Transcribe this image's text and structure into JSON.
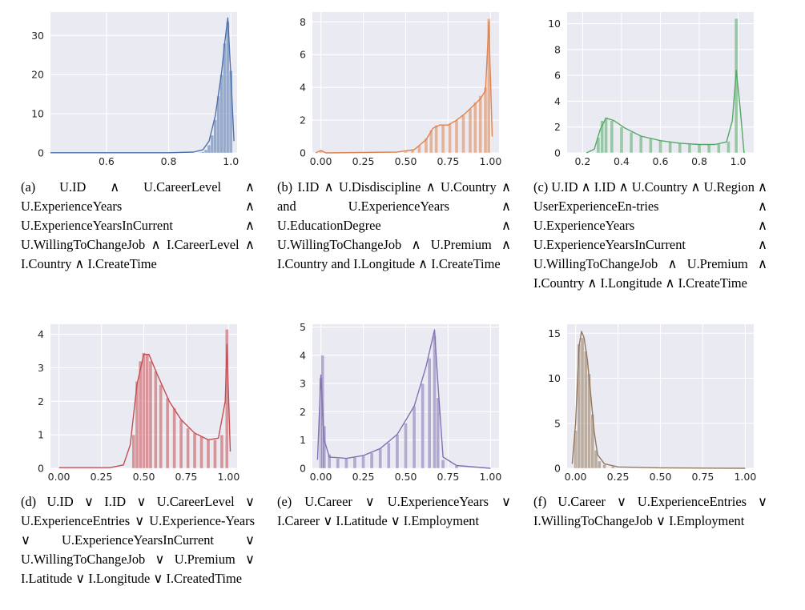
{
  "chart_data": [
    {
      "type": "histogram",
      "panel_id": "a",
      "color": "#4c72b0",
      "xlim": [
        0.42,
        1.02
      ],
      "ylim": [
        0,
        36
      ],
      "xticks": [
        0.6,
        0.8,
        1.0
      ],
      "xtick_labels": [
        "0.6",
        "0.8",
        "1.0"
      ],
      "yticks": [
        0,
        10,
        20,
        30
      ],
      "ytick_labels": [
        "0",
        "10",
        "20",
        "30"
      ],
      "bins": [
        [
          0.9,
          0.1
        ],
        [
          0.91,
          0.3
        ],
        [
          0.92,
          0.8
        ],
        [
          0.93,
          2.0
        ],
        [
          0.94,
          4.5
        ],
        [
          0.95,
          8.5
        ],
        [
          0.96,
          14.5
        ],
        [
          0.97,
          20.0
        ],
        [
          0.98,
          28.0
        ],
        [
          0.99,
          33.5
        ],
        [
          1.0,
          21.0
        ]
      ],
      "kde": [
        [
          0.42,
          0.05
        ],
        [
          0.8,
          0.05
        ],
        [
          0.88,
          0.2
        ],
        [
          0.91,
          0.8
        ],
        [
          0.93,
          3.0
        ],
        [
          0.95,
          9.5
        ],
        [
          0.97,
          20.5
        ],
        [
          0.98,
          28.0
        ],
        [
          0.99,
          34.5
        ],
        [
          1.0,
          20.0
        ],
        [
          1.01,
          3.0
        ]
      ],
      "caption_tag": "(a)",
      "caption": "U.ID ∧ U.CareerLevel ∧ U.ExperienceYears ∧ U.ExperienceYearsInCurrent ∧ U.WillingToChangeJob ∧ I.CareerLevel ∧ I.Country ∧ I.CreateTime"
    },
    {
      "type": "histogram",
      "panel_id": "b",
      "color": "#dd8452",
      "xlim": [
        -0.05,
        1.05
      ],
      "ylim": [
        0,
        8.6
      ],
      "xticks": [
        0.0,
        0.25,
        0.5,
        0.75,
        1.0
      ],
      "xtick_labels": [
        "0.00",
        "0.25",
        "0.50",
        "0.75",
        "1.00"
      ],
      "yticks": [
        0,
        2,
        4,
        6,
        8
      ],
      "ytick_labels": [
        "0",
        "2",
        "4",
        "6",
        "8"
      ],
      "bins": [
        [
          0.0,
          0.15
        ],
        [
          0.02,
          0.05
        ],
        [
          0.5,
          0.1
        ],
        [
          0.54,
          0.2
        ],
        [
          0.58,
          0.45
        ],
        [
          0.62,
          0.9
        ],
        [
          0.65,
          1.4
        ],
        [
          0.68,
          1.7
        ],
        [
          0.72,
          1.7
        ],
        [
          0.76,
          1.8
        ],
        [
          0.8,
          2.0
        ],
        [
          0.84,
          2.3
        ],
        [
          0.88,
          2.7
        ],
        [
          0.91,
          3.1
        ],
        [
          0.94,
          3.5
        ],
        [
          0.97,
          4.0
        ],
        [
          0.99,
          8.2
        ]
      ],
      "kde": [
        [
          -0.03,
          0.0
        ],
        [
          0.0,
          0.15
        ],
        [
          0.03,
          0.0
        ],
        [
          0.45,
          0.05
        ],
        [
          0.55,
          0.2
        ],
        [
          0.62,
          0.8
        ],
        [
          0.66,
          1.5
        ],
        [
          0.7,
          1.7
        ],
        [
          0.75,
          1.7
        ],
        [
          0.8,
          2.0
        ],
        [
          0.85,
          2.4
        ],
        [
          0.9,
          2.9
        ],
        [
          0.94,
          3.3
        ],
        [
          0.97,
          3.8
        ],
        [
          0.99,
          8.0
        ],
        [
          1.01,
          1.0
        ]
      ],
      "caption_tag": "(b)",
      "caption": "I.ID ∧ U.Disdiscipline ∧ U.Country ∧ and U.ExperienceYears ∧ U.EducationDegree ∧ U.WillingToChangeJob ∧ U.Premium ∧ I.Country and I.Longitude ∧ I.CreateTime"
    },
    {
      "type": "histogram",
      "panel_id": "c",
      "color": "#55a868",
      "xlim": [
        0.12,
        1.08
      ],
      "ylim": [
        0,
        10.9
      ],
      "xticks": [
        0.2,
        0.4,
        0.6,
        0.8,
        1.0
      ],
      "xtick_labels": [
        "0.2",
        "0.4",
        "0.6",
        "0.8",
        "1.0"
      ],
      "yticks": [
        0,
        2,
        4,
        6,
        8,
        10
      ],
      "ytick_labels": [
        "0",
        "2",
        "4",
        "6",
        "8",
        "10"
      ],
      "bins": [
        [
          0.28,
          1.2
        ],
        [
          0.3,
          2.5
        ],
        [
          0.32,
          2.7
        ],
        [
          0.35,
          2.5
        ],
        [
          0.4,
          2.0
        ],
        [
          0.45,
          1.6
        ],
        [
          0.5,
          1.3
        ],
        [
          0.55,
          1.1
        ],
        [
          0.6,
          0.95
        ],
        [
          0.65,
          0.85
        ],
        [
          0.7,
          0.75
        ],
        [
          0.75,
          0.7
        ],
        [
          0.8,
          0.65
        ],
        [
          0.85,
          0.65
        ],
        [
          0.9,
          0.7
        ],
        [
          0.95,
          0.9
        ],
        [
          0.99,
          10.4
        ]
      ],
      "kde": [
        [
          0.22,
          0.0
        ],
        [
          0.26,
          0.3
        ],
        [
          0.29,
          1.8
        ],
        [
          0.32,
          2.7
        ],
        [
          0.36,
          2.5
        ],
        [
          0.42,
          1.9
        ],
        [
          0.5,
          1.3
        ],
        [
          0.6,
          0.95
        ],
        [
          0.7,
          0.75
        ],
        [
          0.8,
          0.65
        ],
        [
          0.88,
          0.65
        ],
        [
          0.94,
          0.85
        ],
        [
          0.97,
          2.5
        ],
        [
          0.99,
          6.4
        ],
        [
          1.01,
          3.5
        ],
        [
          1.03,
          0.0
        ]
      ],
      "caption_tag": "(c)",
      "caption": "U.ID ∧ I.ID ∧ U.Country ∧ U.Region ∧ UserExperienceEn-tries ∧ U.ExperienceYears ∧ U.ExperienceYearsInCurrent ∧ U.WillingToChangeJob ∧ U.Premium ∧ I.Country ∧ I.Longitude ∧ I.CreateTime"
    },
    {
      "type": "histogram",
      "panel_id": "d",
      "color": "#c44e52",
      "xlim": [
        -0.05,
        1.05
      ],
      "ylim": [
        0,
        4.3
      ],
      "xticks": [
        0.0,
        0.25,
        0.5,
        0.75,
        1.0
      ],
      "xtick_labels": [
        "0.00",
        "0.25",
        "0.50",
        "0.75",
        "1.00"
      ],
      "yticks": [
        0,
        1,
        2,
        3,
        4
      ],
      "ytick_labels": [
        "0",
        "1",
        "2",
        "3",
        "4"
      ],
      "bins": [
        [
          0.44,
          1.0
        ],
        [
          0.46,
          2.6
        ],
        [
          0.48,
          3.2
        ],
        [
          0.5,
          3.45
        ],
        [
          0.52,
          3.4
        ],
        [
          0.54,
          3.2
        ],
        [
          0.57,
          2.9
        ],
        [
          0.6,
          2.5
        ],
        [
          0.64,
          2.1
        ],
        [
          0.68,
          1.8
        ],
        [
          0.72,
          1.45
        ],
        [
          0.76,
          1.2
        ],
        [
          0.8,
          1.05
        ],
        [
          0.84,
          0.95
        ],
        [
          0.88,
          0.85
        ],
        [
          0.92,
          0.85
        ],
        [
          0.96,
          1.0
        ],
        [
          0.99,
          4.15
        ]
      ],
      "kde": [
        [
          0.0,
          0.02
        ],
        [
          0.3,
          0.02
        ],
        [
          0.38,
          0.1
        ],
        [
          0.42,
          0.7
        ],
        [
          0.46,
          2.5
        ],
        [
          0.5,
          3.4
        ],
        [
          0.53,
          3.4
        ],
        [
          0.58,
          2.8
        ],
        [
          0.65,
          2.0
        ],
        [
          0.72,
          1.45
        ],
        [
          0.8,
          1.05
        ],
        [
          0.88,
          0.85
        ],
        [
          0.94,
          0.9
        ],
        [
          0.98,
          2.0
        ],
        [
          0.99,
          3.7
        ],
        [
          1.01,
          0.5
        ]
      ],
      "caption_tag": "(d)",
      "caption": "U.ID ∨ I.ID ∨ U.CareerLevel ∨ U.ExperienceEntries ∨ U.Experience-Years ∨ U.ExperienceYearsInCurrent ∨ U.WillingToChangeJob ∨ U.Premium ∨ I.Latitude ∨ I.Longitude ∨ I.CreatedTime"
    },
    {
      "type": "histogram",
      "panel_id": "e",
      "color": "#8172b3",
      "xlim": [
        -0.05,
        1.05
      ],
      "ylim": [
        0,
        5.1
      ],
      "xticks": [
        0.0,
        0.25,
        0.5,
        0.75,
        1.0
      ],
      "xtick_labels": [
        "0.00",
        "0.25",
        "0.50",
        "0.75",
        "1.00"
      ],
      "yticks": [
        0,
        1,
        2,
        3,
        4,
        5
      ],
      "ytick_labels": [
        "0",
        "1",
        "2",
        "3",
        "4",
        "5"
      ],
      "bins": [
        [
          0.0,
          3.2
        ],
        [
          0.01,
          4.0
        ],
        [
          0.02,
          1.5
        ],
        [
          0.05,
          0.5
        ],
        [
          0.1,
          0.35
        ],
        [
          0.15,
          0.35
        ],
        [
          0.2,
          0.4
        ],
        [
          0.25,
          0.45
        ],
        [
          0.3,
          0.55
        ],
        [
          0.35,
          0.7
        ],
        [
          0.4,
          0.9
        ],
        [
          0.45,
          1.2
        ],
        [
          0.5,
          1.6
        ],
        [
          0.55,
          2.2
        ],
        [
          0.6,
          3.0
        ],
        [
          0.64,
          3.9
        ],
        [
          0.67,
          4.7
        ],
        [
          0.69,
          2.5
        ],
        [
          0.72,
          0.3
        ],
        [
          0.8,
          0.1
        ]
      ],
      "kde": [
        [
          -0.02,
          0.3
        ],
        [
          0.0,
          3.3
        ],
        [
          0.02,
          1.0
        ],
        [
          0.05,
          0.4
        ],
        [
          0.15,
          0.35
        ],
        [
          0.25,
          0.45
        ],
        [
          0.35,
          0.7
        ],
        [
          0.45,
          1.2
        ],
        [
          0.55,
          2.2
        ],
        [
          0.62,
          3.6
        ],
        [
          0.67,
          4.9
        ],
        [
          0.69,
          3.0
        ],
        [
          0.72,
          0.4
        ],
        [
          0.8,
          0.1
        ],
        [
          1.0,
          0.0
        ]
      ],
      "caption_tag": "(e)",
      "caption": "U.Career ∨ U.ExperienceYears ∨ I.Career ∨ I.Latitude ∨ I.Employment"
    },
    {
      "type": "histogram",
      "panel_id": "f",
      "color": "#937860",
      "xlim": [
        -0.05,
        1.05
      ],
      "ylim": [
        0,
        16
      ],
      "xticks": [
        0.0,
        0.25,
        0.5,
        0.75,
        1.0
      ],
      "xtick_labels": [
        "0.00",
        "0.25",
        "0.50",
        "0.75",
        "1.00"
      ],
      "yticks": [
        0,
        5,
        10,
        15
      ],
      "ytick_labels": [
        "0",
        "5",
        "10",
        "15"
      ],
      "bins": [
        [
          0.0,
          4.2
        ],
        [
          0.02,
          13.8
        ],
        [
          0.04,
          14.5
        ],
        [
          0.06,
          13.0
        ],
        [
          0.08,
          10.5
        ],
        [
          0.1,
          6.0
        ],
        [
          0.12,
          2.0
        ],
        [
          0.14,
          0.8
        ],
        [
          0.17,
          0.4
        ],
        [
          0.22,
          0.2
        ]
      ],
      "kde": [
        [
          -0.02,
          0.5
        ],
        [
          0.0,
          5.0
        ],
        [
          0.02,
          13.5
        ],
        [
          0.035,
          15.2
        ],
        [
          0.05,
          14.5
        ],
        [
          0.07,
          12.0
        ],
        [
          0.09,
          8.0
        ],
        [
          0.11,
          4.0
        ],
        [
          0.13,
          1.5
        ],
        [
          0.17,
          0.5
        ],
        [
          0.25,
          0.15
        ],
        [
          0.5,
          0.05
        ],
        [
          1.0,
          0.0
        ]
      ],
      "caption_tag": "(f)",
      "caption": "U.Career ∨ U.ExperienceEntries ∨ I.WillingToChangeJob ∨ I.Employment"
    }
  ]
}
